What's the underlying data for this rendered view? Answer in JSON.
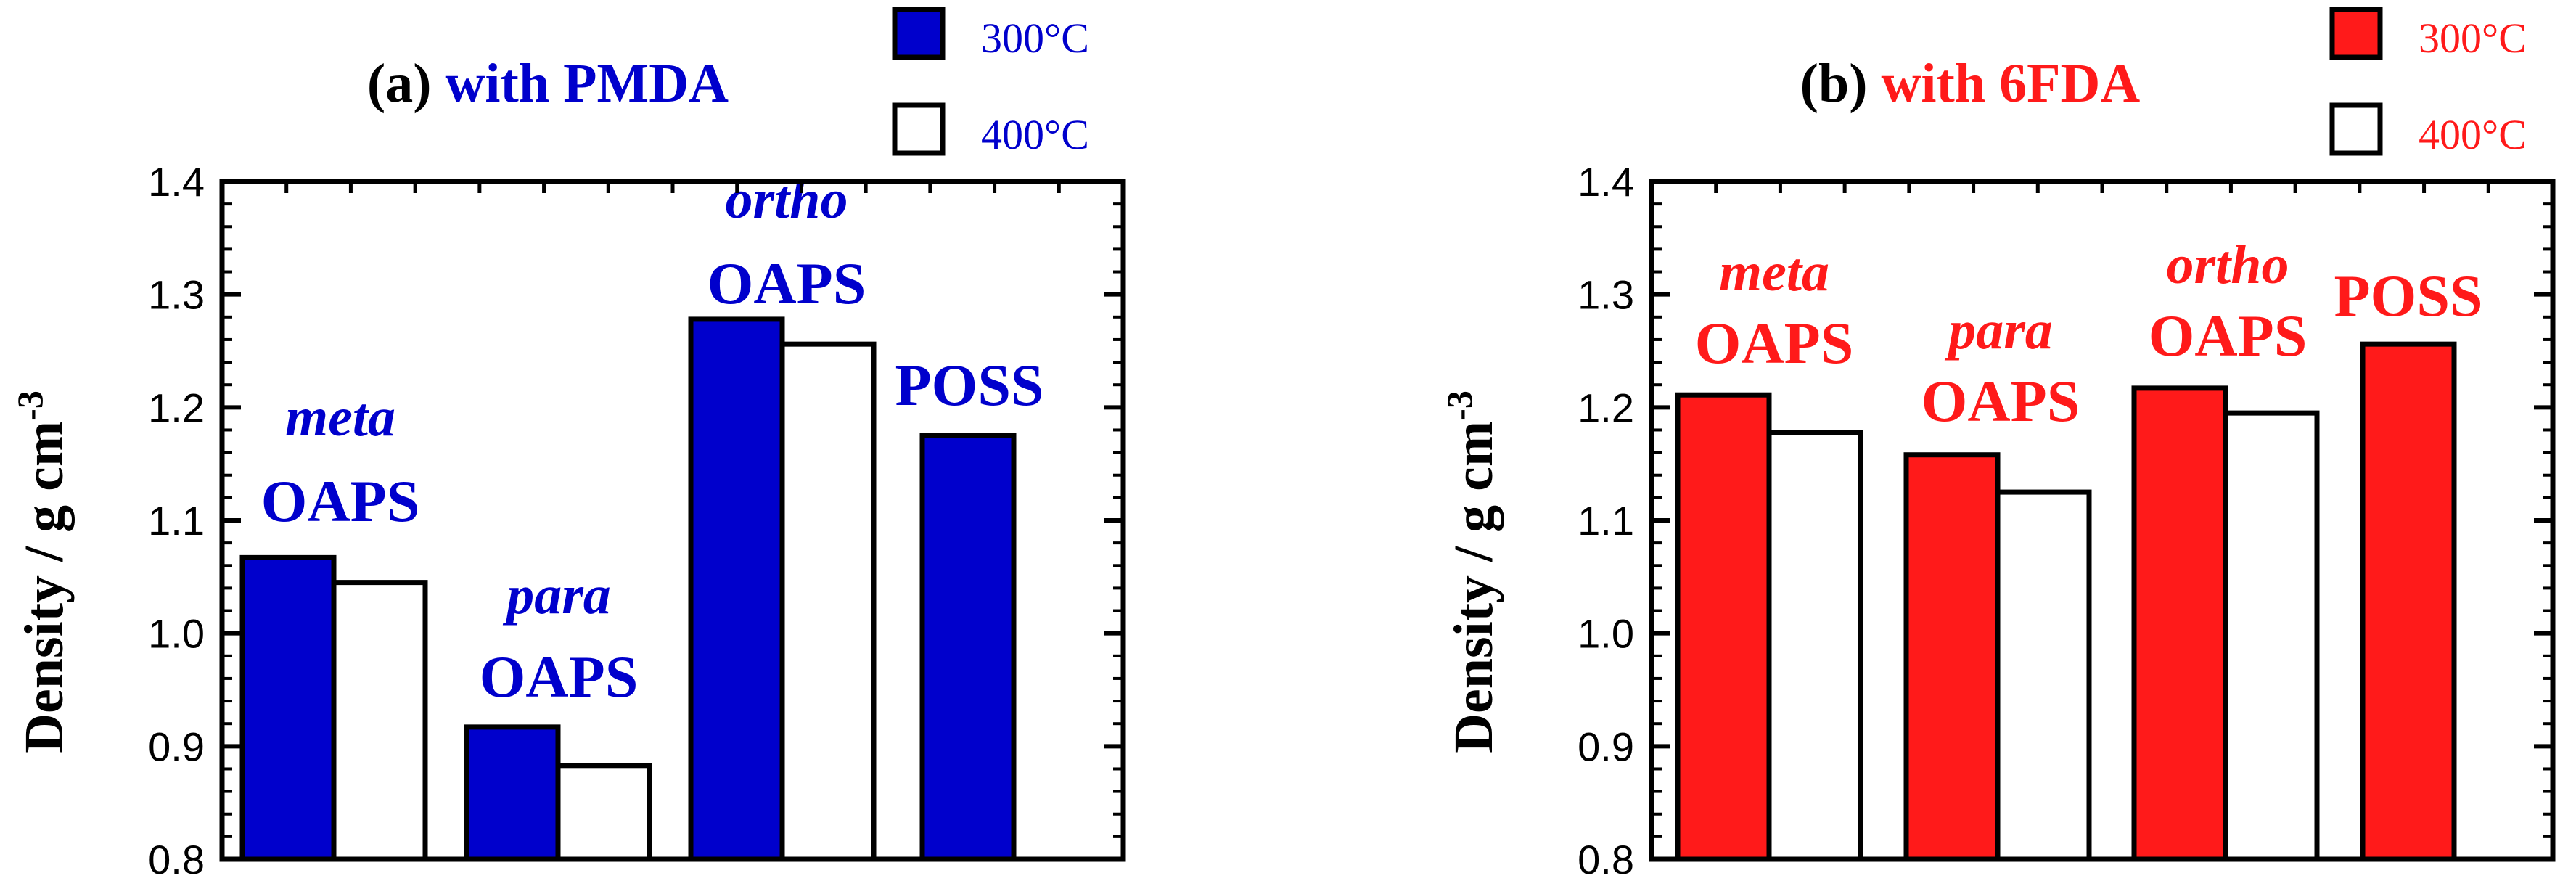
{
  "colors": {
    "pmda": "#0000cc",
    "fda": "#ff1a1a",
    "axis": "#000000",
    "open_fill": "#ffffff"
  },
  "chart_data": [
    {
      "type": "bar",
      "panel": "a",
      "title_prefix": "(a)",
      "title_main": "with PMDA",
      "ylabel_text": "Density / g cm",
      "ylabel_exp": "-3",
      "ylim": [
        0.8,
        1.4
      ],
      "yticks": [
        "0.8",
        "0.9",
        "1.0",
        "1.1",
        "1.2",
        "1.3",
        "1.4"
      ],
      "legend": [
        "300°C",
        "400°C"
      ],
      "groups": [
        {
          "label_top": "meta",
          "label_bottom": "OAPS",
          "values": [
            1.067,
            1.045
          ]
        },
        {
          "label_top": "para",
          "label_bottom": "OAPS",
          "values": [
            0.917,
            0.883
          ]
        },
        {
          "label_top": "ortho",
          "label_bottom": "OAPS",
          "values": [
            1.278,
            1.256
          ]
        },
        {
          "label_top": "",
          "label_bottom": "POSS",
          "values": [
            1.175,
            null
          ]
        }
      ]
    },
    {
      "type": "bar",
      "panel": "b",
      "title_prefix": "(b)",
      "title_main": "with 6FDA",
      "ylabel_text": "Density / g cm",
      "ylabel_exp": "-3",
      "ylim": [
        0.8,
        1.4
      ],
      "yticks": [
        "0.8",
        "0.9",
        "1.0",
        "1.1",
        "1.2",
        "1.3",
        "1.4"
      ],
      "legend": [
        "300°C",
        "400°C"
      ],
      "groups": [
        {
          "label_top": "meta",
          "label_bottom": "OAPS",
          "values": [
            1.211,
            1.178
          ]
        },
        {
          "label_top": "para",
          "label_bottom": "OAPS",
          "values": [
            1.158,
            1.125
          ]
        },
        {
          "label_top": "ortho",
          "label_bottom": "OAPS",
          "values": [
            1.217,
            1.195
          ]
        },
        {
          "label_top": "",
          "label_bottom": "POSS",
          "values": [
            1.256,
            null
          ]
        }
      ]
    }
  ]
}
